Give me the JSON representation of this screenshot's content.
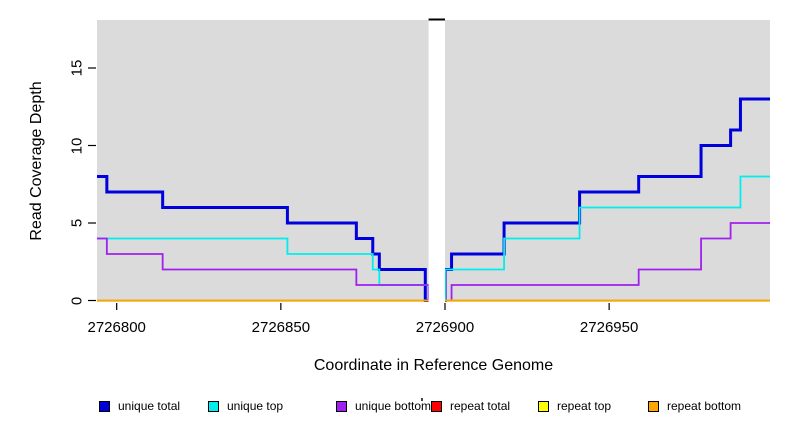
{
  "chart_data": {
    "type": "line",
    "subtype": "step-coverage-plot",
    "title": "",
    "xlabel": "Coordinate in Reference Genome",
    "ylabel": "Read Coverage Depth",
    "xlim": [
      2726794,
      2726999
    ],
    "ylim": [
      0,
      18
    ],
    "grid": false,
    "plot_bg_color": "#DBDBDB",
    "x_ticks": [
      2726800,
      2726850,
      2726900,
      2726950
    ],
    "x_tick_labels": [
      "2726800",
      "2726850",
      "2726900",
      "2726950"
    ],
    "y_ticks": [
      0,
      5,
      10,
      15
    ],
    "y_tick_labels": [
      "0",
      "5",
      "10",
      "15"
    ],
    "gap_region": {
      "start": 2726895,
      "end": 2726900,
      "marker_color": "#000000"
    },
    "series": [
      {
        "name": "unique total",
        "color": "#0000DD",
        "width": 3,
        "steps": [
          [
            2726794,
            8
          ],
          [
            2726797,
            7
          ],
          [
            2726814,
            6
          ],
          [
            2726852,
            5
          ],
          [
            2726873,
            4
          ],
          [
            2726878,
            3
          ],
          [
            2726880,
            2
          ],
          [
            2726894,
            0
          ],
          [
            2726900,
            2
          ],
          [
            2726902,
            3
          ],
          [
            2726918,
            5
          ],
          [
            2726941,
            7
          ],
          [
            2726959,
            8
          ],
          [
            2726978,
            10
          ],
          [
            2726987,
            11
          ],
          [
            2726990,
            13
          ]
        ]
      },
      {
        "name": "unique top",
        "color": "#00EEEE",
        "width": 1.8,
        "steps": [
          [
            2726794,
            4
          ],
          [
            2726852,
            3
          ],
          [
            2726878,
            2
          ],
          [
            2726880,
            1
          ],
          [
            2726895,
            0
          ],
          [
            2726900,
            2
          ],
          [
            2726918,
            4
          ],
          [
            2726941,
            6
          ],
          [
            2726990,
            8
          ]
        ]
      },
      {
        "name": "unique bottom",
        "color": "#A020F0",
        "width": 1.8,
        "steps": [
          [
            2726794,
            4
          ],
          [
            2726797,
            3
          ],
          [
            2726814,
            2
          ],
          [
            2726873,
            1
          ],
          [
            2726895,
            0
          ],
          [
            2726902,
            1
          ],
          [
            2726959,
            2
          ],
          [
            2726978,
            4
          ],
          [
            2726987,
            5
          ]
        ]
      },
      {
        "name": "repeat total",
        "color": "#FF0000",
        "width": 1.8,
        "steps": [
          [
            2726794,
            0
          ]
        ]
      },
      {
        "name": "repeat top",
        "color": "#FFFF00",
        "width": 1.8,
        "steps": [
          [
            2726794,
            0
          ]
        ]
      },
      {
        "name": "repeat bottom",
        "color": "#FFA500",
        "width": 1.8,
        "steps": [
          [
            2726794,
            0
          ]
        ]
      }
    ],
    "legend": {
      "position": "bottom",
      "items": [
        {
          "label": "unique total",
          "color": "#0000DD"
        },
        {
          "label": "unique top",
          "color": "#00EEEE"
        },
        {
          "label": "unique bottom",
          "color": "#A020F0"
        },
        {
          "label": "repeat total",
          "color": "#FF0000"
        },
        {
          "label": "repeat top",
          "color": "#FFFF00"
        },
        {
          "label": "repeat bottom",
          "color": "#FFA500"
        }
      ]
    }
  }
}
